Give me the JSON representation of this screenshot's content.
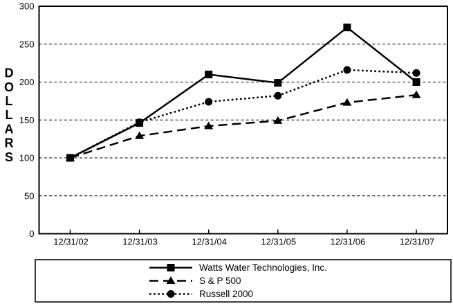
{
  "chart_data": {
    "type": "line",
    "title": "",
    "xlabel": "",
    "ylabel": "DOLLARS",
    "ylim": [
      0,
      300
    ],
    "ytick_step": 50,
    "yticks": [
      0,
      50,
      100,
      150,
      200,
      250,
      300
    ],
    "grid": "horizontal-dashed",
    "legend_position": "bottom-box",
    "background": "#ffffff",
    "line_color": "#000000",
    "categories": [
      "12/31/02",
      "12/31/03",
      "12/31/04",
      "12/31/05",
      "12/31/06",
      "12/31/07"
    ],
    "series": [
      {
        "name": "Watts Water Technologies, Inc.",
        "line": "solid",
        "marker": "square",
        "values": [
          100,
          146,
          210,
          199,
          272,
          200
        ]
      },
      {
        "name": "S & P 500",
        "line": "dashed",
        "marker": "triangle",
        "values": [
          100,
          129,
          142,
          149,
          173,
          183
        ]
      },
      {
        "name": "Russell 2000",
        "line": "dotted",
        "marker": "circle",
        "values": [
          100,
          147,
          174,
          182,
          216,
          212
        ]
      }
    ]
  }
}
